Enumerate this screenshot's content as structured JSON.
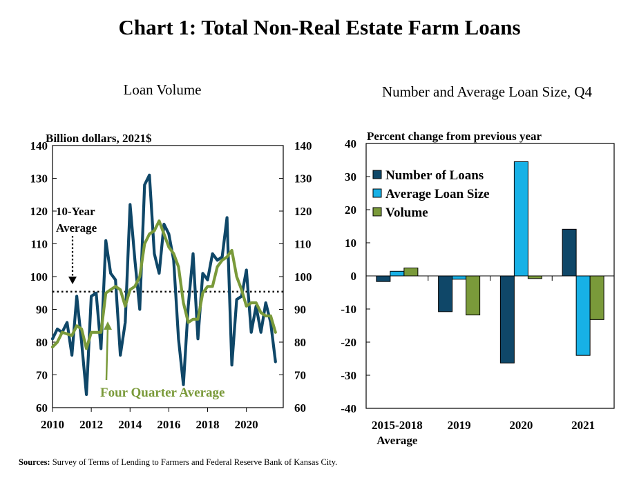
{
  "title": "Chart 1: Total Non-Real Estate Farm Loans",
  "footer": {
    "sources_label": "Sources:",
    "sources_text": " Survey of Terms of Lending to Farmers and Federal Reserve Bank of Kansas City."
  },
  "colors": {
    "dark_blue": "#0f4768",
    "light_blue": "#17b1e6",
    "green": "#7a9a3a"
  },
  "chart_data": [
    {
      "type": "line",
      "panel_title": "Loan Volume",
      "unit_label": "Billion dollars, 2021$",
      "ylim": [
        60,
        140
      ],
      "yticks": [
        60,
        70,
        80,
        90,
        100,
        110,
        120,
        130,
        140
      ],
      "xlim": [
        2010,
        2021.9
      ],
      "xticks": [
        2010,
        2012,
        2014,
        2016,
        2018,
        2020
      ],
      "reference_line": {
        "value": 95.4,
        "label_lines": [
          "10-Year",
          "Average"
        ]
      },
      "series_annotation": "Four Quarter Average",
      "series": [
        {
          "key": "quarterly",
          "color": "#0f4768",
          "x_start": 2010.0,
          "x_step": 0.25,
          "values": [
            81,
            84,
            83,
            86,
            76,
            94,
            80,
            64,
            94,
            95,
            78,
            111,
            101,
            99,
            76,
            86,
            122,
            105,
            90,
            128,
            131,
            107,
            101,
            116,
            113,
            105,
            81,
            67,
            91,
            107,
            81,
            101,
            99,
            107,
            105,
            106,
            118,
            73,
            93,
            94,
            102,
            83,
            91,
            83,
            92,
            86,
            74
          ]
        },
        {
          "key": "four_quarter_average",
          "color": "#7a9a3a",
          "x_start": 2010.0,
          "x_step": 0.25,
          "values": [
            78.5,
            80,
            83,
            82.5,
            82,
            85,
            84,
            78,
            83,
            83,
            83,
            95,
            96,
            97,
            96,
            91,
            96,
            97,
            100,
            110,
            113,
            114,
            117,
            113,
            109,
            107,
            103,
            92,
            86,
            87,
            87,
            95,
            97,
            97,
            103,
            105,
            106,
            108,
            100,
            96,
            91,
            92,
            92,
            89,
            88,
            88,
            83
          ]
        }
      ]
    },
    {
      "type": "bar",
      "panel_title": "Number and Average Loan Size, Q4",
      "unit_label": "Percent change from previous year",
      "ylim": [
        -40,
        40
      ],
      "yticks": [
        -40,
        -30,
        -20,
        -10,
        0,
        10,
        20,
        30,
        40
      ],
      "categories": [
        [
          "2015-2018",
          "Average"
        ],
        [
          "2019"
        ],
        [
          "2020"
        ],
        [
          "2021"
        ]
      ],
      "series": [
        {
          "name": "Number of Loans",
          "color": "#0f4768",
          "values": [
            -1.7,
            -10.8,
            -26.3,
            14.1
          ]
        },
        {
          "name": "Average Loan Size",
          "color": "#17b1e6",
          "values": [
            1.4,
            -1.0,
            34.5,
            -24.0
          ]
        },
        {
          "name": "Volume",
          "color": "#7a9a3a",
          "values": [
            2.4,
            -11.8,
            -0.8,
            -13.2
          ]
        }
      ]
    }
  ]
}
